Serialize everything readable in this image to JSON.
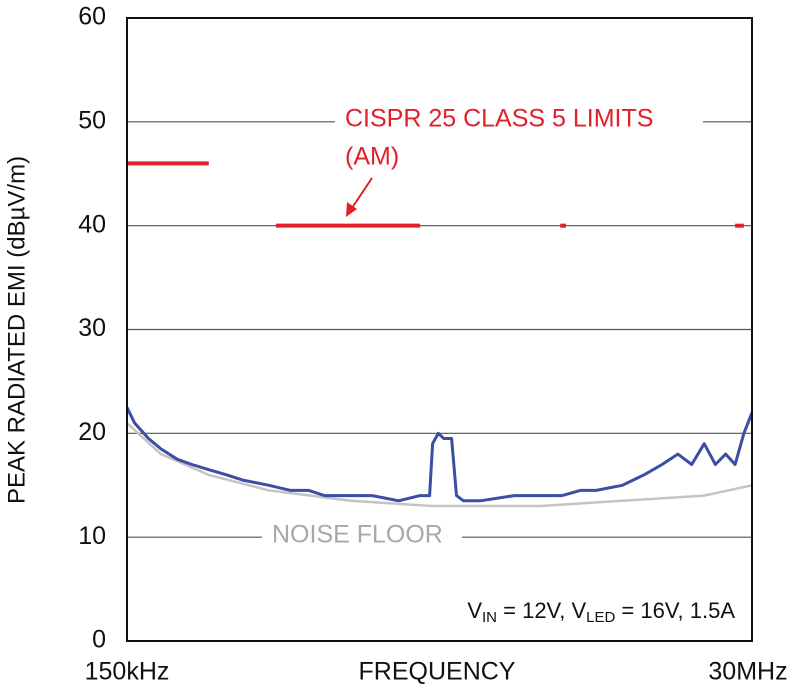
{
  "chart_data": {
    "type": "line",
    "y_label": "PEAK RADIATED EMI (dBµV/m)",
    "x_label": "FREQUENCY",
    "log_x": true,
    "grid": true,
    "xlim": [
      0.15,
      30
    ],
    "xticks": [
      {
        "value": 0.15,
        "label": "150kHz"
      },
      {
        "value": 30,
        "label": "30MHz"
      }
    ],
    "ylim": [
      0,
      60
    ],
    "yticks": [
      0,
      10,
      20,
      30,
      40,
      50,
      60
    ],
    "series": [
      {
        "color": "#3b4ea3",
        "x": [
          0.15,
          0.16,
          0.18,
          0.2,
          0.23,
          0.26,
          0.3,
          0.35,
          0.4,
          0.5,
          0.6,
          0.7,
          0.8,
          1.0,
          1.2,
          1.5,
          1.8,
          1.95,
          2.0,
          2.1,
          2.2,
          2.35,
          2.45,
          2.6,
          3.0,
          4.0,
          5.0,
          6.0,
          7.0,
          8.0,
          10,
          12,
          14,
          16,
          18,
          20,
          22,
          24,
          26,
          28,
          30
        ],
        "values": [
          22.5,
          21,
          19.5,
          18.5,
          17.5,
          17,
          16.5,
          16,
          15.5,
          15,
          14.5,
          14.5,
          14,
          14,
          14,
          13.5,
          14,
          14,
          19,
          20,
          19.5,
          19.5,
          14,
          13.5,
          13.5,
          14,
          14,
          14,
          14.5,
          14.5,
          15,
          16,
          17,
          18,
          17,
          19,
          17,
          18,
          17,
          20,
          22
        ]
      },
      {
        "name": "NOISE FLOOR",
        "color": "#c4c4c4",
        "x": [
          0.15,
          0.2,
          0.3,
          0.5,
          1.0,
          2.0,
          5.0,
          10,
          20,
          30
        ],
        "values": [
          21,
          18,
          16,
          14.5,
          13.5,
          13,
          13,
          13.5,
          14,
          15
        ]
      }
    ],
    "limits": {
      "label": [
        "CISPR 25 CLASS 5 LIMITS",
        "(AM)"
      ],
      "color": "#e0202a",
      "segments": [
        {
          "x": [
            0.15,
            0.3
          ],
          "value": 46
        },
        {
          "x": [
            0.53,
            1.8
          ],
          "value": 40
        },
        {
          "x": [
            5.9,
            6.2
          ],
          "value": 40
        },
        {
          "x": [
            26,
            28
          ],
          "value": 40
        }
      ]
    },
    "condition": [
      "V",
      "IN",
      " = 12V, V",
      "LED",
      " = 16V, 1.5A"
    ]
  }
}
